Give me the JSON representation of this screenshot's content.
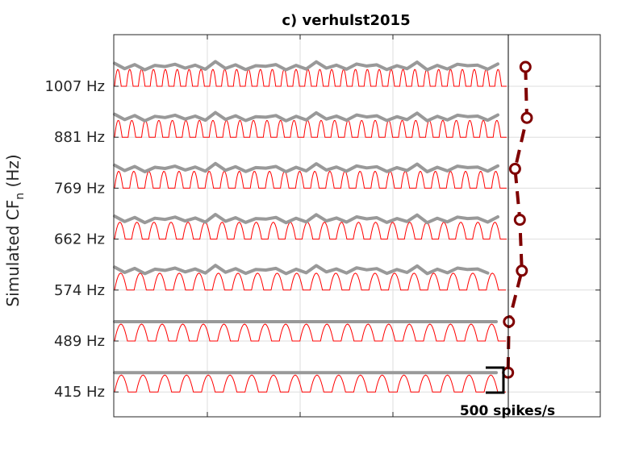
{
  "chart_data": {
    "type": "line",
    "title": "c) verhulst2015",
    "ylabel_main": "Simulated CF",
    "ylabel_sub": "n",
    "ylabel_unit": " (Hz)",
    "channels": [
      {
        "label": "1007 Hz",
        "cycles": 33,
        "envelope_period": 2.5,
        "rate_marker": 0.76
      },
      {
        "label": "881 Hz",
        "cycles": 29,
        "envelope_period": 2.3,
        "rate_marker": 0.82
      },
      {
        "label": "769 Hz",
        "cycles": 26,
        "envelope_period": 2.0,
        "rate_marker": 0.3
      },
      {
        "label": "662 Hz",
        "cycles": 23,
        "envelope_period": 1.8,
        "rate_marker": 0.51
      },
      {
        "label": "574 Hz",
        "cycles": 20,
        "envelope_period": 1.7,
        "rate_marker": 0.6
      },
      {
        "label": "489 Hz",
        "cycles": 19,
        "envelope_period": 0,
        "rate_marker": 0.03
      },
      {
        "label": "415 Hz",
        "cycles": 18,
        "envelope_period": 0,
        "rate_marker": -0.01
      }
    ],
    "scale_bar": {
      "label": "500 spikes/s",
      "value": 500
    },
    "grid": true,
    "colors": {
      "psth": "#ff0000",
      "envelope": "#999999",
      "marker": "#7f0000",
      "axes": "#262626",
      "grid": "#dedede"
    }
  }
}
